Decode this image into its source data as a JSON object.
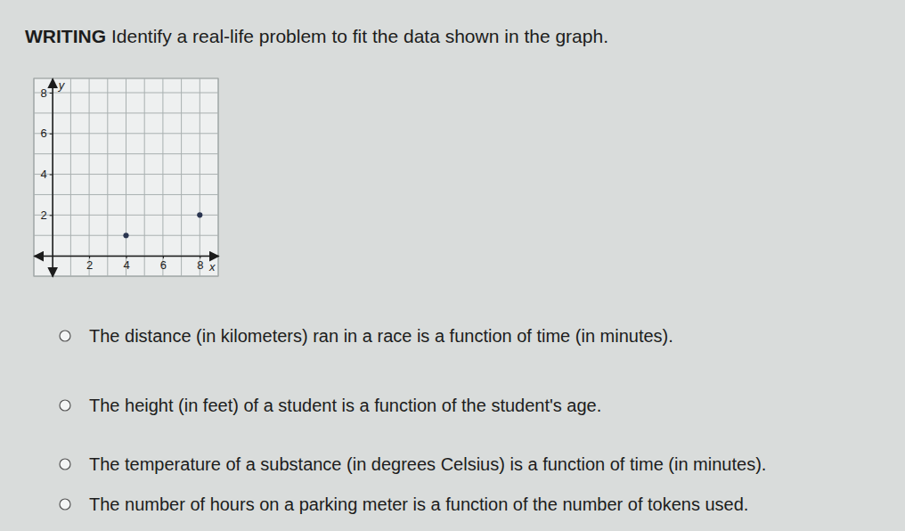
{
  "header": {
    "label": "WRITING",
    "text": "Identify a real-life problem to fit the data shown in the graph."
  },
  "chart_data": {
    "type": "scatter",
    "x": [
      4,
      8
    ],
    "values": [
      1,
      2
    ],
    "xlabel": "x",
    "ylabel": "y",
    "xlim": [
      -1,
      9
    ],
    "ylim": [
      -1,
      8.7
    ],
    "xticks": [
      2,
      4,
      6,
      8
    ],
    "yticks": [
      2,
      4,
      6,
      8
    ],
    "grid": true,
    "color": "#2a3550",
    "marker": "circle"
  },
  "options": [
    "The distance (in kilometers) ran in a race is a function of time (in minutes).",
    "The height (in feet) of a student is a function of the student's age.",
    "The temperature of a substance (in degrees Celsius) is a function of time (in minutes).",
    "The number of hours on a parking meter is a function of the number of tokens used."
  ]
}
